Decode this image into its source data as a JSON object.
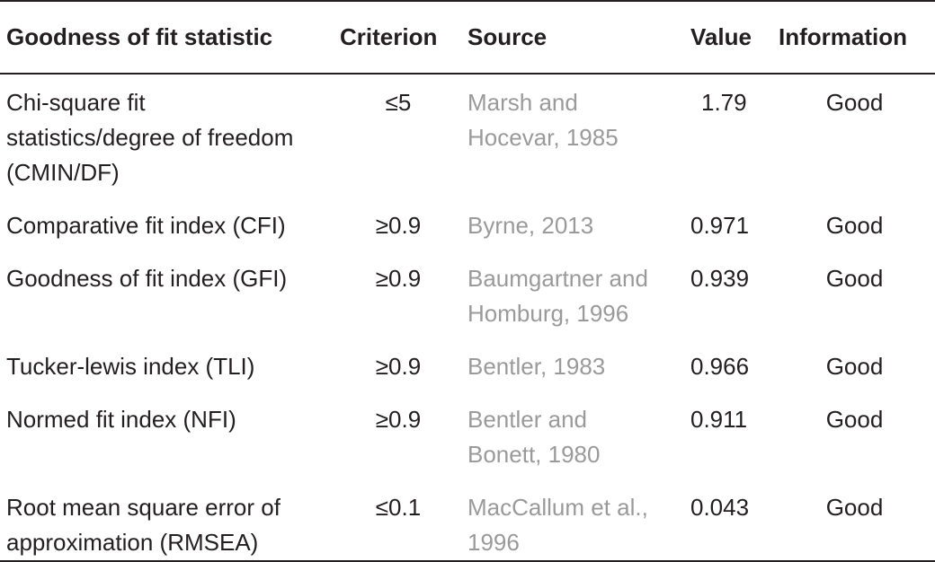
{
  "table": {
    "headers": [
      "Goodness of fit statistic",
      "Criterion",
      "Source",
      "Value",
      "Information"
    ],
    "rows": [
      {
        "statistic": "Chi-square fit statistics/degree of freedom (CMIN/DF)",
        "criterion": "≤5",
        "source": "Marsh and Hocevar, 1985",
        "value": "1.79",
        "information": "Good"
      },
      {
        "statistic": "Comparative fit index (CFI)",
        "criterion": "≥0.9",
        "source": "Byrne, 2013",
        "value": "0.971",
        "information": "Good"
      },
      {
        "statistic": "Goodness of fit index (GFI)",
        "criterion": "≥0.9",
        "source": "Baumgartner and Homburg, 1996",
        "value": "0.939",
        "information": "Good"
      },
      {
        "statistic": "Tucker-lewis index (TLI)",
        "criterion": "≥0.9",
        "source": "Bentler, 1983",
        "value": "0.966",
        "information": "Good"
      },
      {
        "statistic": "Normed fit index (NFI)",
        "criterion": "≥0.9",
        "source": "Bentler and Bonett, 1980",
        "value": "0.911",
        "information": "Good"
      },
      {
        "statistic": "Root mean square error of approximation (RMSEA)",
        "criterion": "≤0.1",
        "source": "MacCallum et al., 1996",
        "value": "0.043",
        "information": "Good"
      }
    ]
  }
}
